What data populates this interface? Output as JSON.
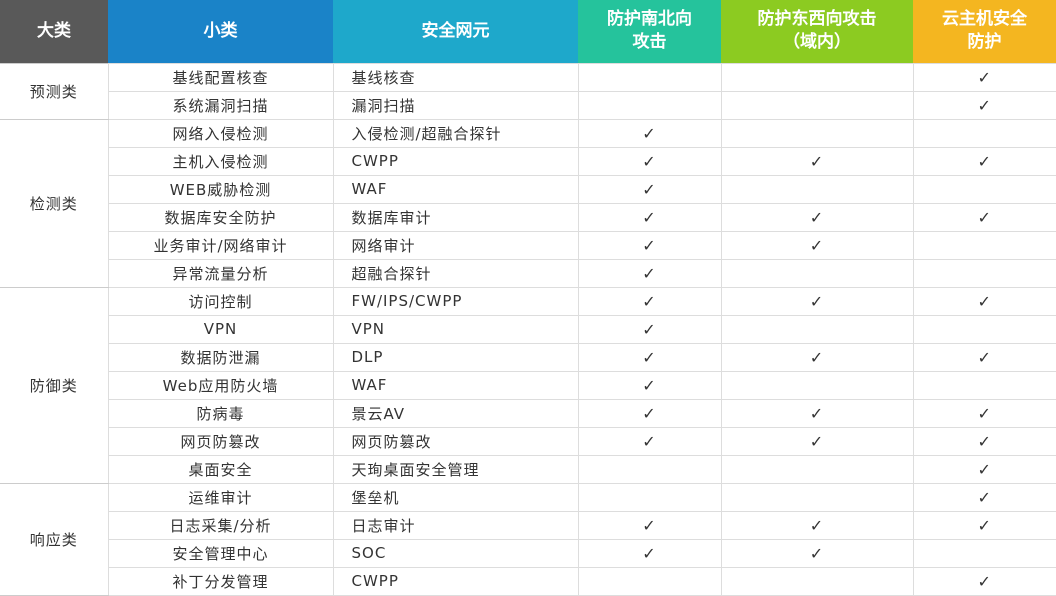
{
  "headers": [
    {
      "label": "大类",
      "color": "#595959"
    },
    {
      "label": "小类",
      "color": "#1a83c8"
    },
    {
      "label": "安全网元",
      "color": "#1ea8cb"
    },
    {
      "label": "防护南北向攻击",
      "color": "#25c39c"
    },
    {
      "label": "防护东西向攻击（域内）",
      "color": "#8ccb21"
    },
    {
      "label": "云主机安全防护",
      "color": "#f4b620"
    }
  ],
  "check_mark": "✓",
  "groups": [
    {
      "category": "预测类",
      "rows": [
        {
          "sub": "基线配置核查",
          "element": "基线核查",
          "ns": false,
          "ew": false,
          "host": true
        },
        {
          "sub": "系统漏洞扫描",
          "element": "漏洞扫描",
          "ns": false,
          "ew": false,
          "host": true
        }
      ]
    },
    {
      "category": "检测类",
      "rows": [
        {
          "sub": "网络入侵检测",
          "element": "入侵检测/超融合探针",
          "ns": true,
          "ew": false,
          "host": false
        },
        {
          "sub": "主机入侵检测",
          "element": "CWPP",
          "ns": true,
          "ew": true,
          "host": true
        },
        {
          "sub": "WEB威胁检测",
          "element": "WAF",
          "ns": true,
          "ew": false,
          "host": false
        },
        {
          "sub": "数据库安全防护",
          "element": "数据库审计",
          "ns": true,
          "ew": true,
          "host": true
        },
        {
          "sub": "业务审计/网络审计",
          "element": "网络审计",
          "ns": true,
          "ew": true,
          "host": false
        },
        {
          "sub": "异常流量分析",
          "element": "超融合探针",
          "ns": true,
          "ew": false,
          "host": false
        }
      ]
    },
    {
      "category": "防御类",
      "rows": [
        {
          "sub": "访问控制",
          "element": "FW/IPS/CWPP",
          "ns": true,
          "ew": true,
          "host": true
        },
        {
          "sub": "VPN",
          "element": "VPN",
          "ns": true,
          "ew": false,
          "host": false
        },
        {
          "sub": "数据防泄漏",
          "element": "DLP",
          "ns": true,
          "ew": true,
          "host": true
        },
        {
          "sub": "Web应用防火墙",
          "element": "WAF",
          "ns": true,
          "ew": false,
          "host": false
        },
        {
          "sub": "防病毒",
          "element": "景云AV",
          "ns": true,
          "ew": true,
          "host": true
        },
        {
          "sub": "网页防篡改",
          "element": "网页防篡改",
          "ns": true,
          "ew": true,
          "host": true
        },
        {
          "sub": "桌面安全",
          "element": "天珣桌面安全管理",
          "ns": false,
          "ew": false,
          "host": true
        }
      ]
    },
    {
      "category": "响应类",
      "rows": [
        {
          "sub": "运维审计",
          "element": "堡垒机",
          "ns": false,
          "ew": false,
          "host": true
        },
        {
          "sub": "日志采集/分析",
          "element": "日志审计",
          "ns": true,
          "ew": true,
          "host": true
        },
        {
          "sub": "安全管理中心",
          "element": "SOC",
          "ns": true,
          "ew": true,
          "host": false
        },
        {
          "sub": "补丁分发管理",
          "element": "CWPP",
          "ns": false,
          "ew": false,
          "host": true
        }
      ]
    }
  ]
}
